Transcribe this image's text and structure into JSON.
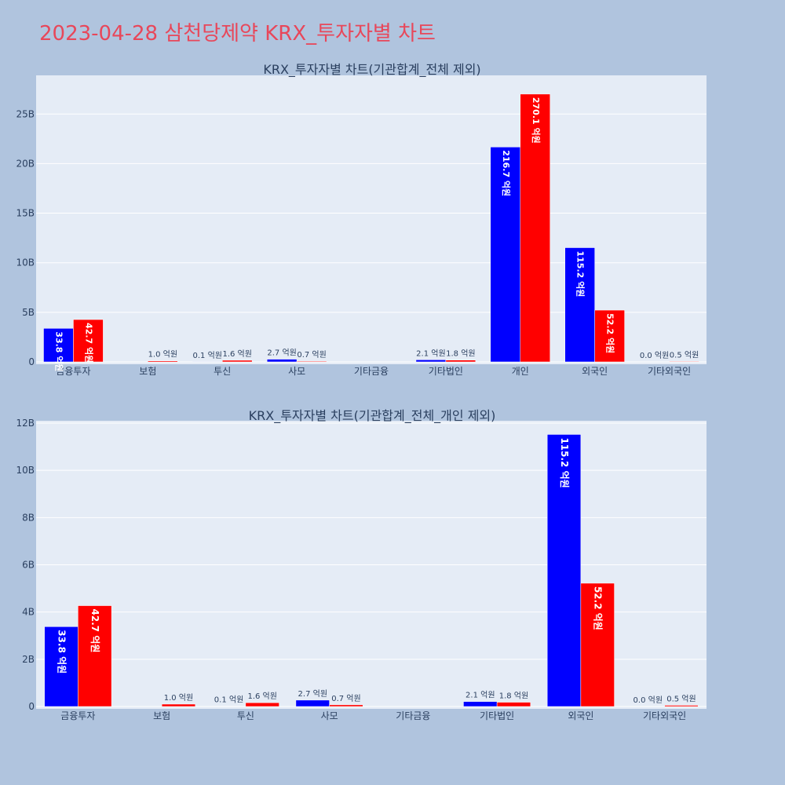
{
  "title": "2023-04-28 삼천당제약 KRX_투자자별 차트",
  "colors": {
    "buy": "#0000ff",
    "sell": "#ff0000",
    "plot_bg": "#e5ecf6",
    "page_bg": "#b0c4de"
  },
  "chart_data": [
    {
      "type": "bar",
      "title": "KRX_투자자별 차트(기관합계_전체 제외)",
      "categories": [
        "금융투자",
        "보험",
        "투신",
        "사모",
        "기타금융",
        "기타법인",
        "개인",
        "외국인",
        "기타외국인"
      ],
      "series": [
        {
          "values": [
            3380000000,
            0,
            10000000,
            270000000,
            0,
            210000000,
            21670000000,
            11520000000,
            0
          ],
          "labels": [
            "33.8 억원",
            "",
            "0.1 억원",
            "2.7 억원",
            "",
            "2.1 억원",
            "216.7 억원",
            "115.2 억원",
            "0.0 억원"
          ]
        },
        {
          "values": [
            4270000000,
            100000000,
            160000000,
            70000000,
            0,
            180000000,
            27010000000,
            5220000000,
            50000000
          ],
          "labels": [
            "42.7 억원",
            "1.0 억원",
            "1.6 억원",
            "0.7 억원",
            "",
            "1.8 억원",
            "270.1 억원",
            "52.2 억원",
            "0.5 억원"
          ]
        }
      ],
      "yticks": [
        0,
        5000000000,
        10000000000,
        15000000000,
        20000000000,
        25000000000
      ],
      "ytick_labels": [
        "0",
        "5B",
        "10B",
        "15B",
        "20B",
        "25B"
      ],
      "ylim": [
        0,
        28900000000
      ],
      "grid": true,
      "legend": "none"
    },
    {
      "type": "bar",
      "title": "KRX_투자자별 차트(기관합계_전체_개인 제외)",
      "categories": [
        "금융투자",
        "보험",
        "투신",
        "사모",
        "기타금융",
        "기타법인",
        "외국인",
        "기타외국인"
      ],
      "series": [
        {
          "values": [
            3380000000,
            0,
            10000000,
            270000000,
            0,
            210000000,
            11520000000,
            0
          ],
          "labels": [
            "33.8 억원",
            "",
            "0.1 억원",
            "2.7 억원",
            "",
            "2.1 억원",
            "115.2 억원",
            "0.0 억원"
          ]
        },
        {
          "values": [
            4270000000,
            100000000,
            160000000,
            70000000,
            0,
            180000000,
            5220000000,
            50000000
          ],
          "labels": [
            "42.7 억원",
            "1.0 억원",
            "1.6 억원",
            "0.7 억원",
            "",
            "1.8 억원",
            "52.2 억원",
            "0.5 억원"
          ]
        }
      ],
      "yticks": [
        0,
        2000000000,
        4000000000,
        6000000000,
        8000000000,
        10000000000,
        12000000000
      ],
      "ytick_labels": [
        "0",
        "2B",
        "4B",
        "6B",
        "8B",
        "10B",
        "12B"
      ],
      "ylim": [
        0,
        12100000000
      ],
      "grid": true,
      "legend": "none"
    }
  ]
}
